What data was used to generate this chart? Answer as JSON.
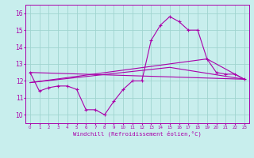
{
  "xlabel": "Windchill (Refroidissement éolien,°C)",
  "xlim": [
    -0.5,
    23.5
  ],
  "ylim": [
    9.5,
    16.5
  ],
  "yticks": [
    10,
    11,
    12,
    13,
    14,
    15,
    16
  ],
  "xticks": [
    0,
    1,
    2,
    3,
    4,
    5,
    6,
    7,
    8,
    9,
    10,
    11,
    12,
    13,
    14,
    15,
    16,
    17,
    18,
    19,
    20,
    21,
    22,
    23
  ],
  "background_color": "#c8eeed",
  "grid_color": "#a0d4d0",
  "line_color": "#aa00aa",
  "series1_x": [
    0,
    1,
    2,
    3,
    4,
    5,
    6,
    7,
    8,
    9,
    10,
    11,
    12,
    13,
    14,
    15,
    16,
    17,
    18,
    19,
    20,
    21,
    22,
    23
  ],
  "series1_y": [
    12.5,
    11.4,
    11.6,
    11.7,
    11.7,
    11.5,
    10.3,
    10.3,
    10.0,
    10.8,
    11.5,
    12.0,
    12.0,
    14.4,
    15.3,
    15.8,
    15.5,
    15.0,
    15.0,
    13.3,
    12.5,
    12.4,
    12.4,
    12.1
  ],
  "series2_x": [
    0,
    23
  ],
  "series2_y": [
    12.5,
    12.1
  ],
  "series3_x": [
    0,
    15,
    23
  ],
  "series3_y": [
    11.9,
    12.8,
    12.1
  ],
  "series4_x": [
    0,
    19,
    23
  ],
  "series4_y": [
    11.9,
    13.3,
    12.1
  ]
}
